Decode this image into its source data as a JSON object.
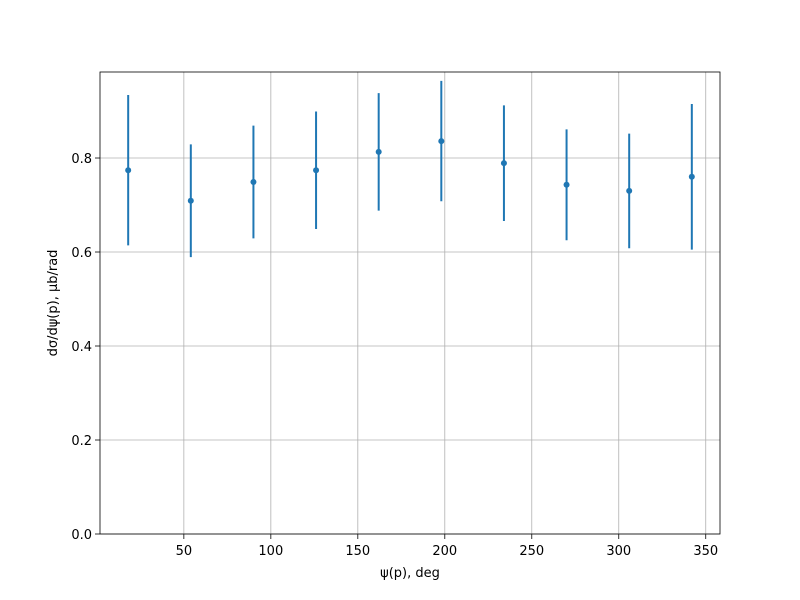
{
  "chart_data": {
    "type": "errorbar",
    "xlabel": "ψ(p), deg",
    "ylabel": "dσ/dψ(p), μb/rad",
    "x": [
      18,
      54,
      90,
      126,
      162,
      198,
      234,
      270,
      306,
      342
    ],
    "series": [
      {
        "color": "#1f77b4",
        "values": [
          0.774,
          0.709,
          0.749,
          0.774,
          0.813,
          0.836,
          0.789,
          0.743,
          0.73,
          0.76
        ],
        "errors": [
          0.16,
          0.12,
          0.12,
          0.125,
          0.125,
          0.128,
          0.123,
          0.118,
          0.122,
          0.155
        ]
      }
    ],
    "xlim": [
      1.8,
      358.2
    ],
    "ylim": [
      0,
      0.983
    ],
    "xticks": [
      50,
      100,
      150,
      200,
      250,
      300,
      350
    ],
    "yticks": [
      {
        "value": 0,
        "label": "0.0"
      },
      0.2,
      0.4,
      0.6,
      0.8
    ],
    "grid": true
  }
}
